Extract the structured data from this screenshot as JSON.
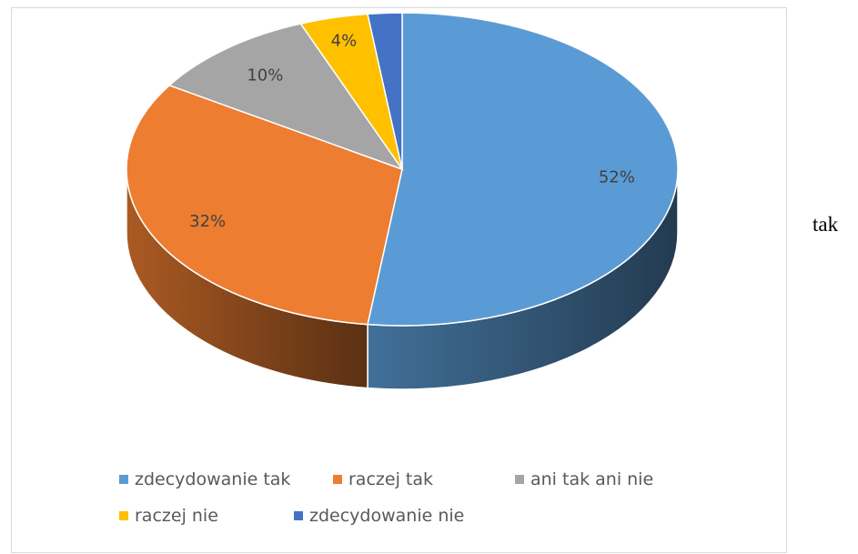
{
  "chart_data": {
    "type": "pie",
    "style": "3d",
    "title": "",
    "slices": [
      {
        "label": "zdecydowanie tak",
        "value": 52,
        "value_label": "52%",
        "color": "#5B9BD5"
      },
      {
        "label": "raczej tak",
        "value": 32,
        "value_label": "32%",
        "color": "#ED7D31"
      },
      {
        "label": "ani tak ani nie",
        "value": 10,
        "value_label": "10%",
        "color": "#A5A5A5"
      },
      {
        "label": "raczej nie",
        "value": 4,
        "value_label": "4%",
        "color": "#FFC000"
      },
      {
        "label": "zdecydowanie nie",
        "value": 2,
        "value_label": "2%",
        "color": "#4472C4"
      }
    ],
    "legend_position": "bottom"
  },
  "side_text": "tak"
}
